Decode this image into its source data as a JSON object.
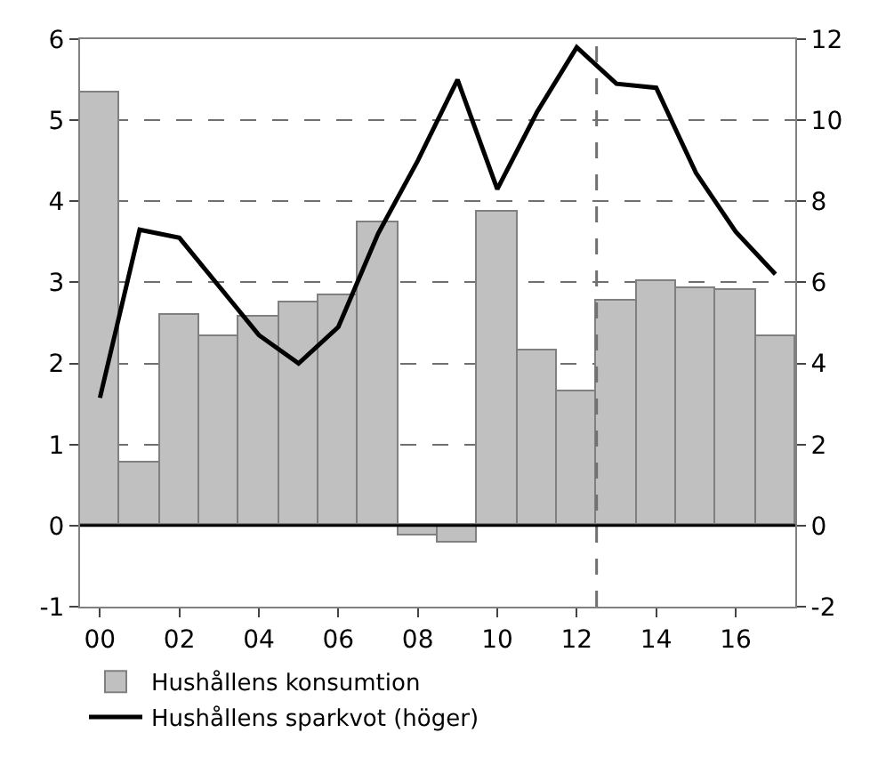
{
  "chart_data": {
    "type": "bar",
    "x": [
      2000,
      2001,
      2002,
      2003,
      2004,
      2005,
      2006,
      2007,
      2008,
      2009,
      2010,
      2011,
      2012,
      2013,
      2014,
      2015,
      2016,
      2017
    ],
    "series": [
      {
        "name": "Hushållens konsumtion",
        "color": "#c0c0c0",
        "values": [
          5.35,
          0.77,
          2.6,
          2.33,
          2.58,
          2.75,
          2.84,
          3.75,
          -0.12,
          -0.2,
          3.87,
          2.16,
          1.66,
          2.77,
          3.02,
          2.92,
          2.9,
          2.33
        ]
      },
      {
        "name": "Hushållens sparkvot (höger)",
        "type": "line",
        "axis": "y2",
        "color": "#000000",
        "values": [
          3.15,
          7.3,
          7.1,
          5.9,
          4.7,
          4.0,
          4.9,
          7.2,
          9.0,
          11.0,
          8.3,
          10.2,
          11.8,
          10.9,
          10.8,
          8.7,
          7.25,
          6.2
        ]
      }
    ],
    "xlim": [
      1999.5,
      2017.5
    ],
    "xticks": [
      {
        "value": 2000,
        "label": "00"
      },
      {
        "value": 2002,
        "label": "02"
      },
      {
        "value": 2004,
        "label": "04"
      },
      {
        "value": 2006,
        "label": "06"
      },
      {
        "value": 2008,
        "label": "08"
      },
      {
        "value": 2010,
        "label": "10"
      },
      {
        "value": 2012,
        "label": "12"
      },
      {
        "value": 2014,
        "label": "14"
      },
      {
        "value": 2016,
        "label": "16"
      }
    ],
    "ylim": [
      -1,
      6
    ],
    "yticks": [
      -1,
      0,
      1,
      2,
      3,
      4,
      5,
      6
    ],
    "y2lim": [
      -2,
      12
    ],
    "y2ticks": [
      -2,
      0,
      2,
      4,
      6,
      8,
      10,
      12
    ],
    "ref_lines": [
      {
        "axis": "x",
        "value": 2012.5,
        "line_style": "dashed",
        "color": "#707070"
      },
      {
        "axis": "y",
        "value": 0,
        "color": "#000000",
        "line_style": "solid"
      }
    ],
    "grid": "y",
    "legend": "bottom",
    "line_style": "solid",
    "marker": "none"
  }
}
